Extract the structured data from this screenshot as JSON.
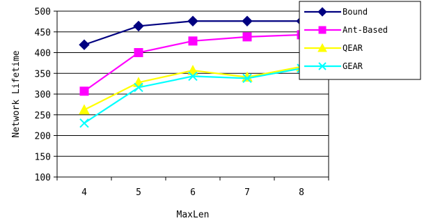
{
  "chart_data": {
    "type": "line",
    "title": "",
    "xlabel": "MaxLen",
    "ylabel": "Network Lifetime",
    "x": [
      4,
      5,
      6,
      7,
      8
    ],
    "ylim": [
      100,
      500
    ],
    "yticks": [
      100,
      150,
      200,
      250,
      300,
      350,
      400,
      450,
      500
    ],
    "grid": "horizontal",
    "legend_position": "top-right",
    "series": [
      {
        "name": "Bound",
        "color": "#000080",
        "marker": "diamond",
        "values": [
          419,
          464,
          476,
          476,
          476
        ]
      },
      {
        "name": "Ant-Based",
        "color": "#FF00FF",
        "marker": "square",
        "values": [
          307,
          400,
          428,
          438,
          443
        ]
      },
      {
        "name": "QEAR",
        "color": "#FFFF00",
        "marker": "triangle",
        "values": [
          262,
          328,
          357,
          341,
          366
        ]
      },
      {
        "name": "GEAR",
        "color": "#00FFFF",
        "marker": "x",
        "values": [
          230,
          316,
          343,
          338,
          362
        ]
      }
    ]
  }
}
